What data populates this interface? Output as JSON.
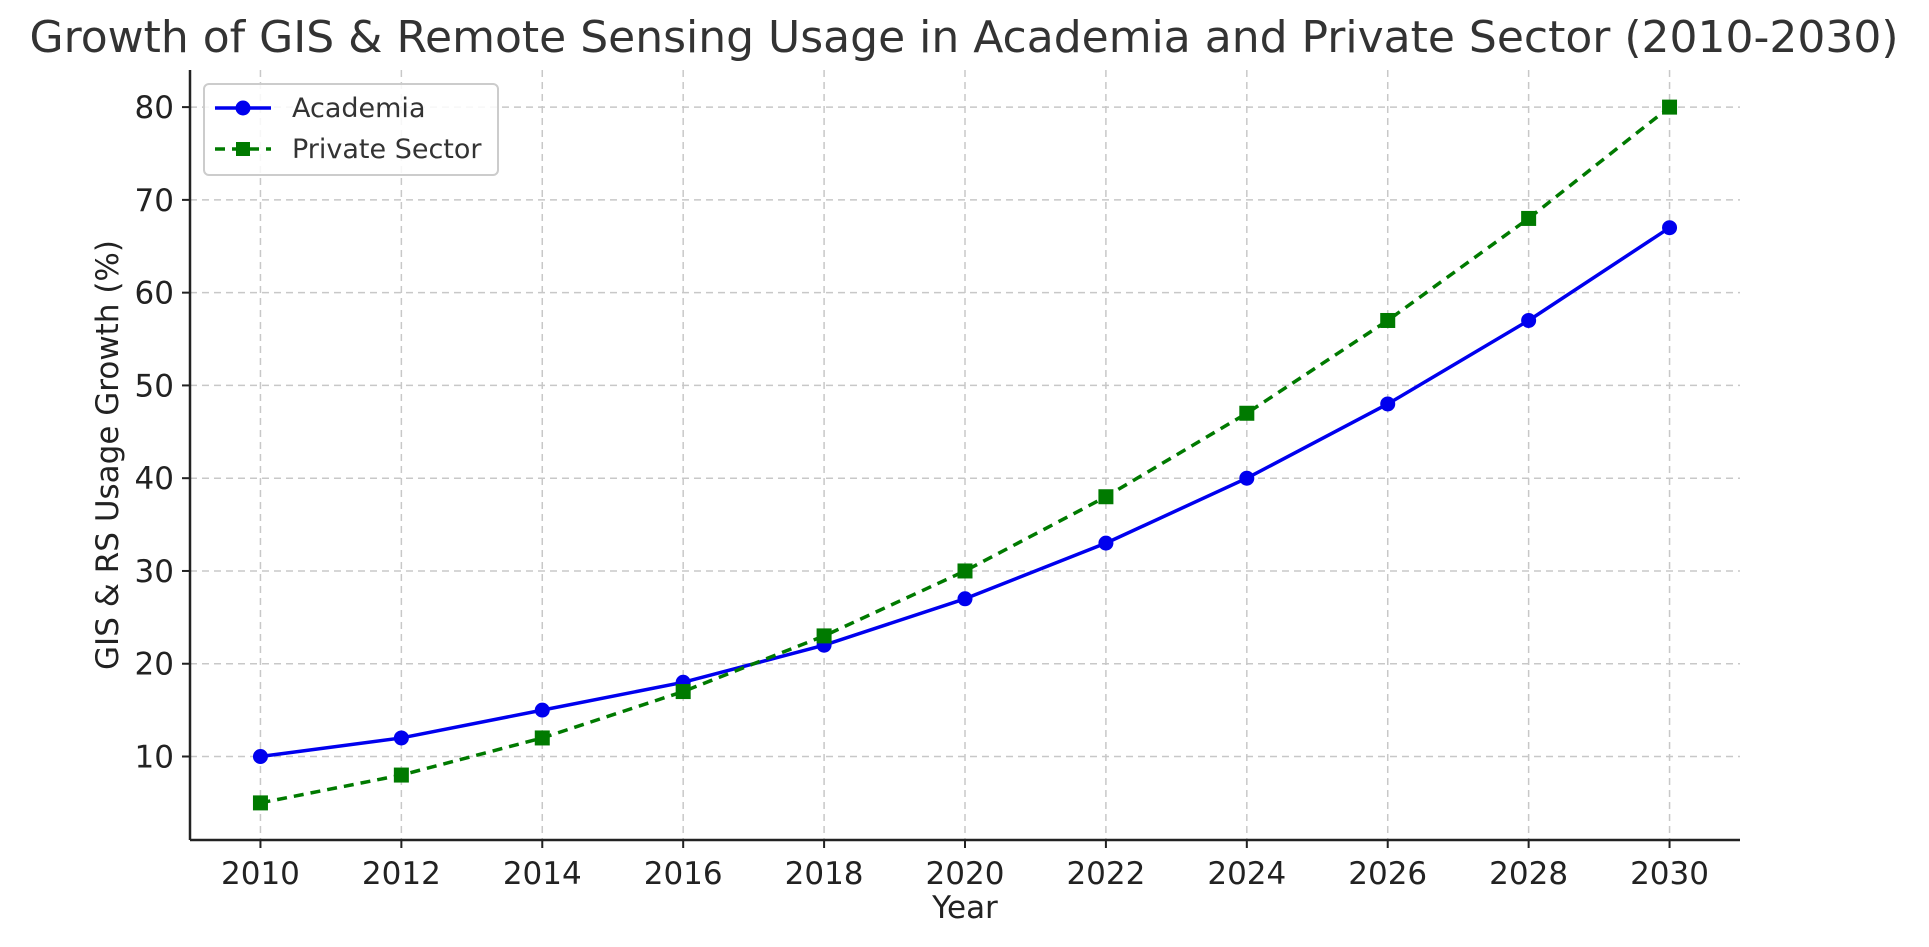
{
  "chart_data": {
    "type": "line",
    "title": "Growth of GIS & Remote Sensing Usage in Academia and Private Sector (2010-2030)",
    "xlabel": "Year",
    "ylabel": "GIS & RS Usage Growth (%)",
    "x": [
      2010,
      2012,
      2014,
      2016,
      2018,
      2020,
      2022,
      2024,
      2026,
      2028,
      2030
    ],
    "xticks": [
      "2010",
      "2012",
      "2014",
      "2016",
      "2018",
      "2020",
      "2022",
      "2024",
      "2026",
      "2028",
      "2030"
    ],
    "yticks": [
      "10",
      "20",
      "30",
      "40",
      "50",
      "60",
      "70",
      "80"
    ],
    "xlim": [
      2009,
      2031
    ],
    "ylim": [
      1,
      84
    ],
    "grid": true,
    "legend_position": "top-left",
    "series": [
      {
        "name": "Academia",
        "values": [
          10,
          12,
          15,
          18,
          22,
          27,
          33,
          40,
          48,
          57,
          67
        ],
        "color": "#0000ee",
        "marker": "circle",
        "line_style": "solid"
      },
      {
        "name": "Private Sector",
        "values": [
          5,
          8,
          12,
          17,
          23,
          30,
          38,
          47,
          57,
          68,
          80
        ],
        "color": "#007a00",
        "marker": "square",
        "line_style": "dashed"
      }
    ]
  }
}
